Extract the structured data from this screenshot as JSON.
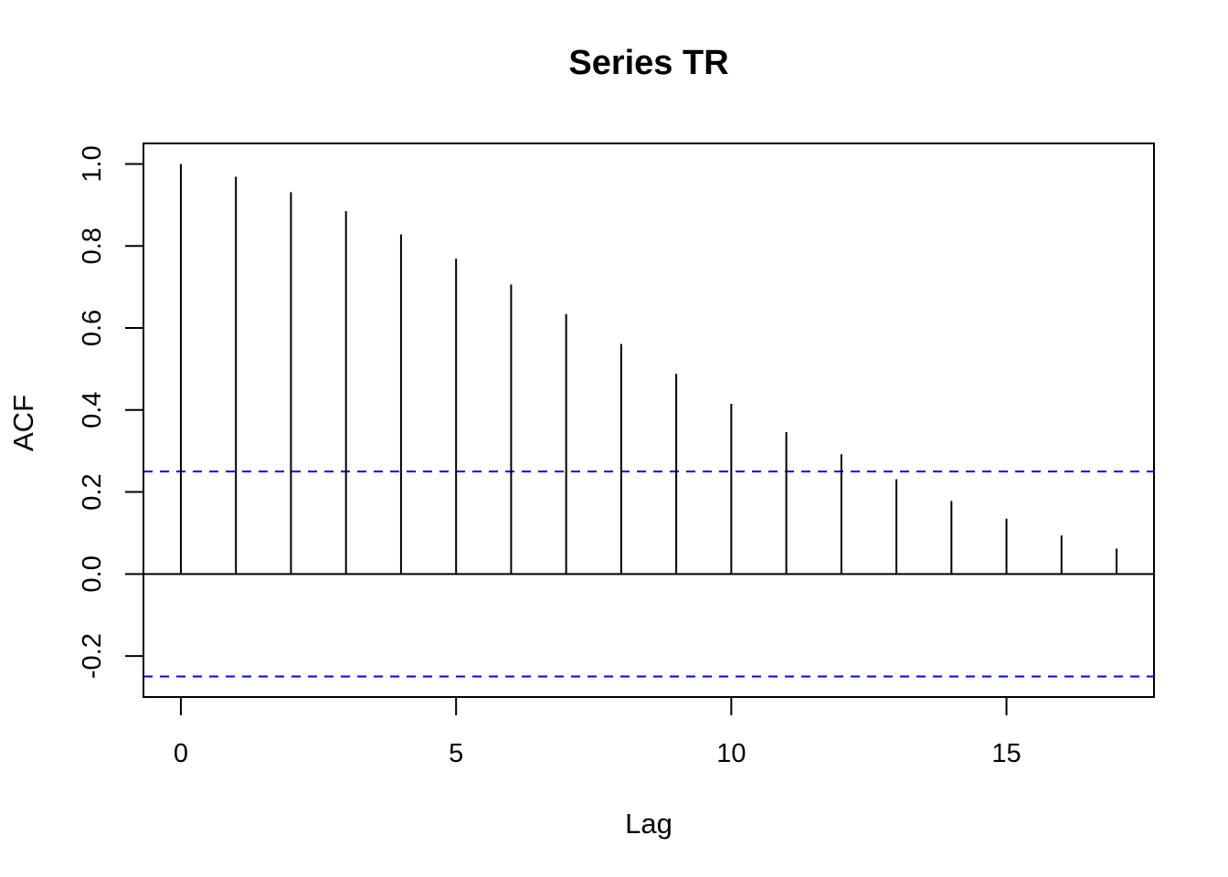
{
  "chart_data": {
    "type": "bar",
    "title": "Series  TR",
    "xlabel": "Lag",
    "ylabel": "ACF",
    "x": [
      0,
      1,
      2,
      3,
      4,
      5,
      6,
      7,
      8,
      9,
      10,
      11,
      12,
      13,
      14,
      15,
      16,
      17
    ],
    "values": [
      1.0,
      0.969,
      0.931,
      0.885,
      0.828,
      0.769,
      0.706,
      0.634,
      0.561,
      0.488,
      0.415,
      0.346,
      0.292,
      0.231,
      0.178,
      0.135,
      0.094,
      0.062
    ],
    "confidence_bound": 0.25,
    "xlim": [
      -0.68,
      17.68
    ],
    "ylim": [
      -0.3,
      1.05
    ],
    "xticks": [
      0,
      5,
      10,
      15
    ],
    "xtick_labels": [
      "0",
      "5",
      "10",
      "15"
    ],
    "yticks": [
      -0.2,
      0.0,
      0.2,
      0.4,
      0.6,
      0.8,
      1.0
    ],
    "ytick_labels": [
      "-0.2",
      "0.0",
      "0.2",
      "0.4",
      "0.6",
      "0.8",
      "1.0"
    ],
    "grid": false,
    "colors": {
      "bars": "#000000",
      "confidence_lines": "#0000ff",
      "axes": "#000000"
    }
  }
}
